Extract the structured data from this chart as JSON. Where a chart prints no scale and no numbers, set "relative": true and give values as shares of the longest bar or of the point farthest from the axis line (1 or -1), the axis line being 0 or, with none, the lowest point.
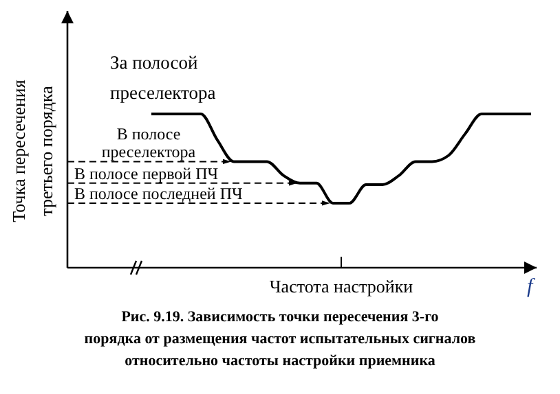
{
  "chart_data": {
    "type": "line",
    "relative": true,
    "xlabel": "Частота настройки",
    "ylabel": "Точка пересечения третьего порядка",
    "categories": [
      null,
      null,
      null,
      null,
      null,
      null,
      null,
      null,
      null,
      null,
      null,
      null,
      null,
      null,
      null,
      null,
      null,
      null,
      null,
      null,
      null,
      null,
      null,
      null,
      null,
      null,
      null,
      null,
      null
    ],
    "series": [
      {
        "color": "#000000",
        "values": [
          null,
          null,
          null,
          null,
          null,
          1,
          1,
          1,
          1,
          0.83,
          0.69,
          0.69,
          0.69,
          0.6,
          0.55,
          0.55,
          0.42,
          0.42,
          0.54,
          0.54,
          0.6,
          0.69,
          0.69,
          0.73,
          0.87,
          1,
          1,
          1,
          1
        ]
      }
    ],
    "ref_lines": [
      {
        "axis": "y",
        "value": 0.69,
        "label": "В полосе преселектора",
        "line_style": "dashed"
      },
      {
        "axis": "y",
        "value": 0.55,
        "label": "В полосе первой ПЧ",
        "line_style": "dashed"
      },
      {
        "axis": "y",
        "value": 0.42,
        "label": "В полосе последней ПЧ",
        "line_style": "dashed"
      }
    ],
    "annotations": [
      "За полосой преселектора",
      "f",
      "Рис. 9.19. Зависимость точки пересечения 3-го порядка от размещения частот испытательных сигналов относительно частоты настройки приемника"
    ],
    "grid": false,
    "marker": "none",
    "line_style": "solid"
  }
}
